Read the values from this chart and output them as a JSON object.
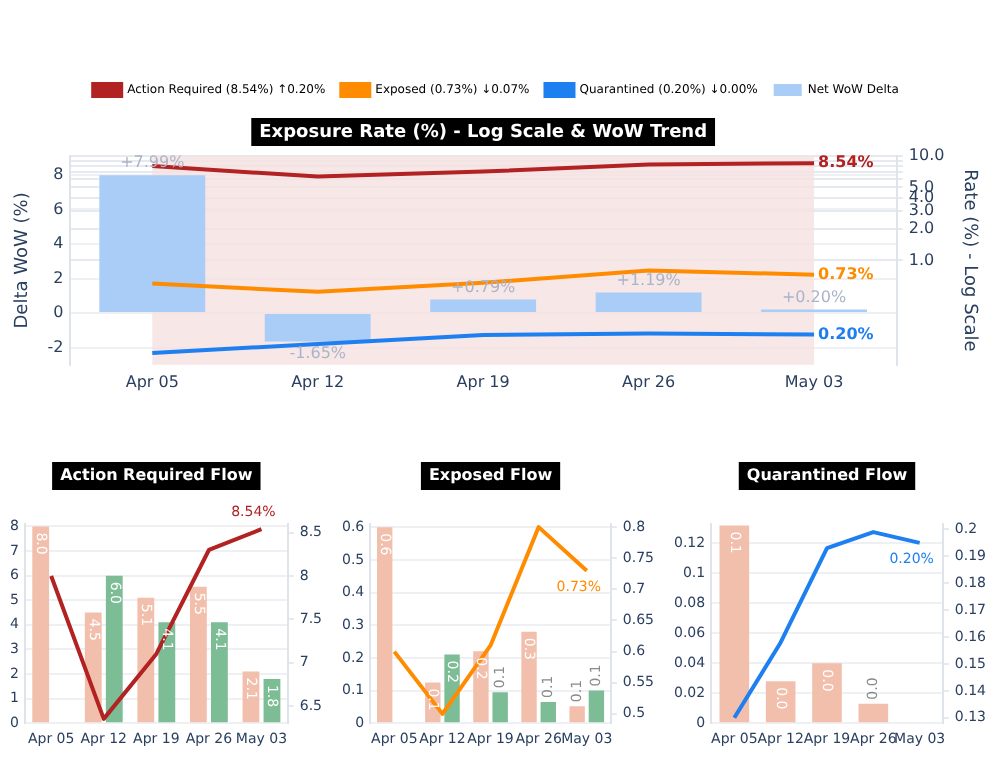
{
  "chart_data": [
    {
      "type": "bar",
      "title": "Exposure Rate (%) - Log Scale & WoW Trend",
      "ylabel": "Delta WoW (%)",
      "y2label": "Rate (%) - Log Scale",
      "categories": [
        "Apr 05",
        "Apr 12",
        "Apr 19",
        "Apr 26",
        "May 03"
      ],
      "series": [
        {
          "type": "line",
          "name": "Action Required (8.54%) ↑0.20%",
          "color": "#b22222",
          "axis": "y2",
          "values": [
            8.0,
            6.35,
            7.1,
            8.3,
            8.54
          ],
          "value_labels": [
            null,
            null,
            null,
            null,
            "8.54%"
          ]
        },
        {
          "type": "line",
          "name": "Exposed (0.73%) ↓0.07%",
          "color": "#ff8c00",
          "axis": "y2",
          "values": [
            0.6,
            0.5,
            0.61,
            0.8,
            0.73
          ],
          "value_labels": [
            null,
            null,
            null,
            null,
            "0.73%"
          ]
        },
        {
          "type": "line",
          "name": "Quarantined (0.20%) ↓0.00%",
          "color": "#1e7ff0",
          "axis": "y2",
          "values": [
            0.13,
            0.158,
            0.193,
            0.199,
            0.195
          ],
          "value_labels": [
            null,
            null,
            null,
            null,
            "0.20%"
          ]
        },
        {
          "type": "bar",
          "name": "Net WoW Delta",
          "color": "#a9cdf7",
          "values": [
            7.99,
            -1.65,
            0.79,
            1.19,
            0.2
          ],
          "value_labels": [
            "+7.99%",
            "-1.65%",
            "+0.79%",
            "+1.19%",
            "+0.20%"
          ]
        }
      ],
      "bands": [
        {
          "axis": "x",
          "from": "Apr 05",
          "to": "May 03",
          "color": "#f5e1e1"
        }
      ],
      "ylim": [
        -3,
        9.1
      ],
      "yticks": [
        -2,
        0,
        2,
        4,
        6,
        8
      ],
      "y2lim": [
        0.1,
        10
      ],
      "y2ticks": [
        {
          "value": 1,
          "label": "1.0"
        },
        {
          "value": 2,
          "label": "2.0"
        },
        {
          "value": 3,
          "label": "3.0"
        },
        {
          "value": 4,
          "label": "4.0"
        },
        {
          "value": 5,
          "label": "5.0"
        },
        {
          "value": 6,
          "label": null
        },
        {
          "value": 7,
          "label": null
        },
        {
          "value": 8,
          "label": null
        },
        {
          "value": 9,
          "label": null
        },
        {
          "value": 10,
          "label": "10.0"
        }
      ],
      "log": "y2",
      "grid": "y",
      "legend": "top",
      "marker": "none"
    },
    {
      "type": "bar",
      "title": "Action Required Flow",
      "categories": [
        "Apr 05",
        "Apr 12",
        "Apr 19",
        "Apr 26",
        "May 03"
      ],
      "series": [
        {
          "type": "bar",
          "color": "#f2bfad",
          "values": [
            8.0,
            4.5,
            5.1,
            5.55,
            2.1
          ],
          "value_labels": [
            "8.0",
            "4.5",
            "5.1",
            "5.5",
            "2.1"
          ]
        },
        {
          "type": "bar",
          "color": "#7dbd96",
          "values": [
            null,
            6.0,
            4.1,
            4.1,
            1.8
          ],
          "value_labels": [
            null,
            "6.0",
            "4.1",
            "4.1",
            "1.8"
          ]
        },
        {
          "type": "line",
          "color": "#b22222",
          "axis": "y2",
          "values": [
            8.0,
            6.35,
            7.1,
            8.3,
            8.54
          ],
          "value_labels": [
            null,
            null,
            null,
            null,
            "8.54%"
          ]
        }
      ],
      "ylim": [
        0,
        8.1
      ],
      "yticks": [
        0,
        1,
        2,
        3,
        4,
        5,
        6,
        7,
        8
      ],
      "y2lim": [
        6.3,
        8.6
      ],
      "y2ticks": [
        6.5,
        7,
        7.5,
        8,
        8.5
      ],
      "grid": "y",
      "marker": "none"
    },
    {
      "type": "bar",
      "title": "Exposed Flow",
      "categories": [
        "Apr 05",
        "Apr 12",
        "Apr 19",
        "Apr 26",
        "May 03"
      ],
      "series": [
        {
          "type": "bar",
          "color": "#f2bfad",
          "values": [
            0.6,
            0.125,
            0.22,
            0.28,
            0.052
          ],
          "value_labels": [
            "0.6",
            "0.1",
            "0.2",
            "0.3",
            "0.1"
          ]
        },
        {
          "type": "bar",
          "color": "#7dbd96",
          "values": [
            null,
            0.21,
            0.095,
            0.065,
            0.1
          ],
          "value_labels": [
            null,
            "0.2",
            "0.1",
            "0.1",
            "0.1"
          ]
        },
        {
          "type": "line",
          "color": "#ff8c00",
          "axis": "y2",
          "values": [
            0.6,
            0.5,
            0.61,
            0.8,
            0.73
          ],
          "value_labels": [
            null,
            null,
            null,
            null,
            "0.73%"
          ]
        }
      ],
      "ylim": [
        0,
        0.61
      ],
      "yticks": [
        0,
        0.1,
        0.2,
        0.3,
        0.4,
        0.5,
        0.6
      ],
      "y2lim": [
        0.485,
        0.805
      ],
      "y2ticks": [
        0.5,
        0.55,
        0.6,
        0.65,
        0.7,
        0.75,
        0.8
      ],
      "grid": "y",
      "marker": "none"
    },
    {
      "type": "bar",
      "title": "Quarantined Flow",
      "categories": [
        "Apr 05",
        "Apr 12",
        "Apr 19",
        "Apr 26",
        "May 03"
      ],
      "series": [
        {
          "type": "bar",
          "color": "#f2bfad",
          "values": [
            0.132,
            0.028,
            0.04,
            0.013,
            null
          ],
          "value_labels": [
            "0.1",
            "0.0",
            "0.0",
            "0.0",
            null
          ]
        },
        {
          "type": "line",
          "color": "#1e7ff0",
          "axis": "y2",
          "values": [
            0.13,
            0.158,
            0.193,
            0.199,
            0.195
          ],
          "value_labels": [
            null,
            null,
            null,
            null,
            "0.20%"
          ]
        }
      ],
      "ylim": [
        0,
        0.133
      ],
      "yticks": [
        0,
        0.02,
        0.04,
        0.06,
        0.08,
        0.1,
        0.12
      ],
      "y2lim": [
        0.128,
        0.202
      ],
      "y2ticks": [
        0.13,
        0.14,
        0.15,
        0.16,
        0.17,
        0.18,
        0.19,
        0.2
      ],
      "grid": "y",
      "marker": "none"
    }
  ]
}
